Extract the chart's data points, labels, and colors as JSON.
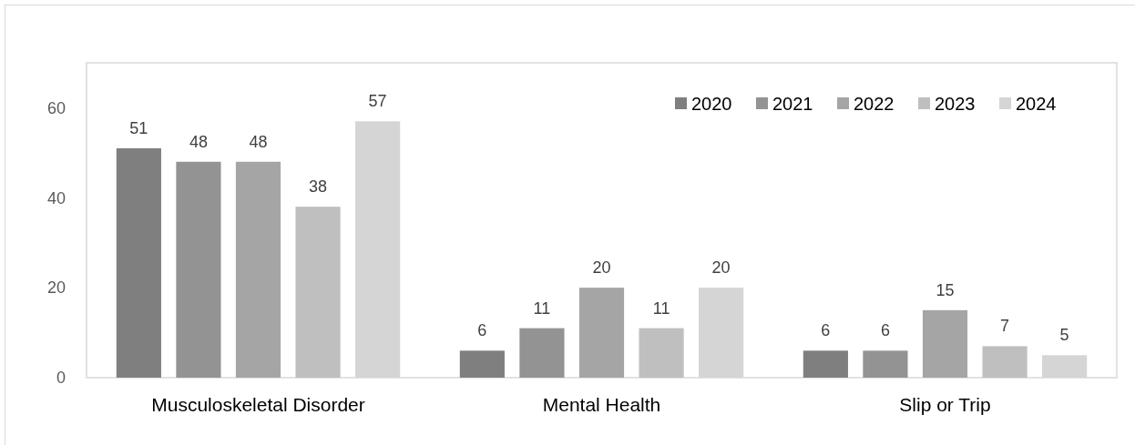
{
  "chart_data": {
    "type": "bar",
    "categories": [
      "Musculoskeletal Disorder",
      "Mental Health",
      "Slip or Trip"
    ],
    "series": [
      {
        "name": "2020",
        "color": "#7f7f7f",
        "values": [
          51,
          6,
          6
        ]
      },
      {
        "name": "2021",
        "color": "#939393",
        "values": [
          48,
          11,
          6
        ]
      },
      {
        "name": "2022",
        "color": "#a5a5a5",
        "values": [
          48,
          20,
          15
        ]
      },
      {
        "name": "2023",
        "color": "#bfbfbf",
        "values": [
          38,
          11,
          7
        ]
      },
      {
        "name": "2024",
        "color": "#d5d5d5",
        "values": [
          57,
          20,
          5
        ]
      }
    ],
    "ylim": [
      0,
      70
    ],
    "yticks": [
      0,
      20,
      40,
      60
    ],
    "grid": false,
    "legend": "top right",
    "data_labels": true
  }
}
